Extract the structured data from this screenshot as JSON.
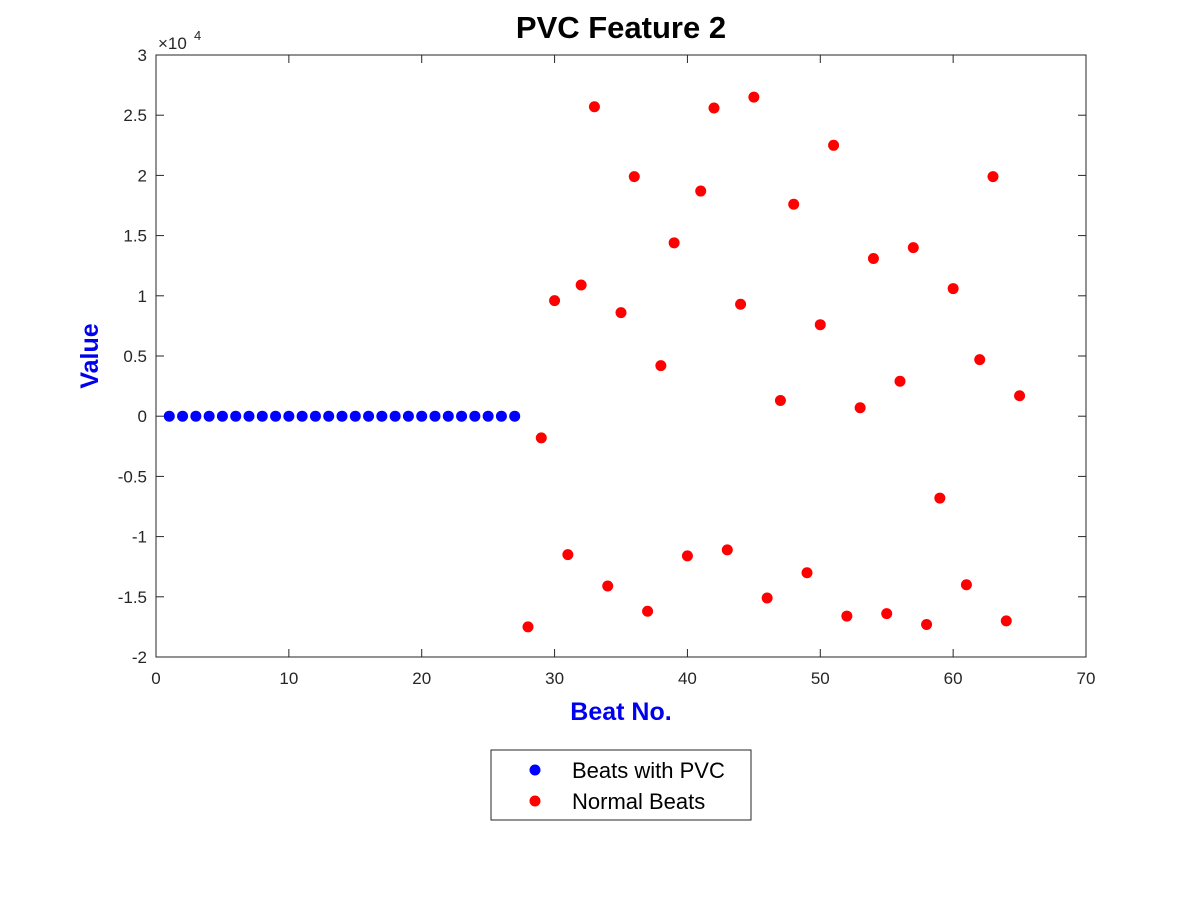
{
  "chart_data": {
    "type": "scatter",
    "title": "PVC Feature 2",
    "xlabel": "Beat No.",
    "ylabel": "Value",
    "xlim": [
      0,
      70
    ],
    "ylim": [
      -20000,
      30000
    ],
    "x_ticks": [
      0,
      10,
      20,
      30,
      40,
      50,
      60,
      70
    ],
    "x_tick_labels": [
      "0",
      "10",
      "20",
      "30",
      "40",
      "50",
      "60",
      "70"
    ],
    "y_ticks": [
      -20000,
      -15000,
      -10000,
      -5000,
      0,
      5000,
      10000,
      15000,
      20000,
      25000,
      30000
    ],
    "y_tick_labels": [
      "-2",
      "-1.5",
      "-1",
      "-0.5",
      "0",
      "0.5",
      "1",
      "1.5",
      "2",
      "2.5",
      "3"
    ],
    "y_exponent_base": "×10",
    "y_exponent_power": "4",
    "grid": false,
    "legend_position": "bottom-center-outside",
    "axis_label_color": "#0000ee",
    "series": [
      {
        "name": "Beats with PVC",
        "color": "#0000ff",
        "x": [
          1,
          2,
          3,
          4,
          5,
          6,
          7,
          8,
          9,
          10,
          11,
          12,
          13,
          14,
          15,
          16,
          17,
          18,
          19,
          20,
          21,
          22,
          23,
          24,
          25,
          26,
          27
        ],
        "y": [
          0,
          0,
          0,
          0,
          0,
          0,
          0,
          0,
          0,
          0,
          0,
          0,
          0,
          0,
          0,
          0,
          0,
          0,
          0,
          0,
          0,
          0,
          0,
          0,
          0,
          0,
          0
        ]
      },
      {
        "name": "Normal Beats",
        "color": "#ff0000",
        "x": [
          28,
          29,
          30,
          31,
          32,
          33,
          34,
          35,
          36,
          37,
          38,
          39,
          40,
          41,
          42,
          43,
          44,
          45,
          46,
          47,
          48,
          49,
          50,
          51,
          52,
          53,
          54,
          55,
          56,
          57,
          58,
          59,
          60,
          61,
          62,
          63,
          64,
          65
        ],
        "y": [
          -17500,
          -1800,
          9600,
          -11500,
          10900,
          25700,
          -14100,
          8600,
          19900,
          -16200,
          4200,
          14400,
          -11600,
          18700,
          25600,
          -11100,
          9300,
          26500,
          -15100,
          1300,
          17600,
          -13000,
          7600,
          22500,
          -16600,
          700,
          13100,
          -16400,
          2900,
          14000,
          -17300,
          -6800,
          10600,
          -14000,
          4700,
          19900,
          -17000,
          1700
        ]
      }
    ]
  }
}
